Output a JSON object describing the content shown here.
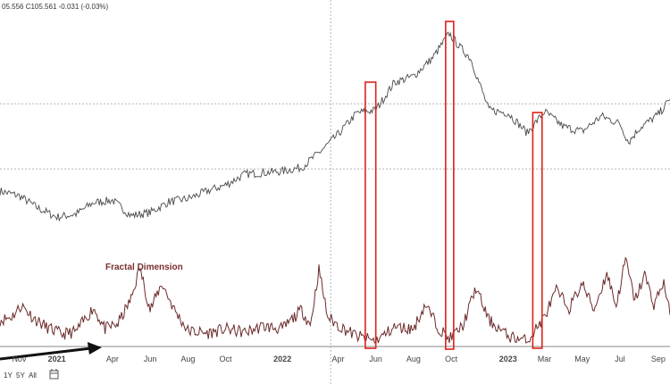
{
  "quote_text": "05.556  C105.561  -0.031 (-0.03%)",
  "indicator_label": "Fractal Dimension",
  "range_buttons": [
    "1Y",
    "5Y",
    "All"
  ],
  "calendar_icon": "calendar-icon",
  "colors": {
    "price_line": "#4a4a4a",
    "fd_line": "#6b2a2a",
    "highlight_box": "#e0201a",
    "arrow": "#111111",
    "grid_dotted": "#b5b5b5",
    "baseline": "#888888"
  },
  "chart_data": [
    {
      "type": "line",
      "title": "",
      "series": [
        {
          "name": "",
          "values_note": ""
        }
      ],
      "x_tick_labels": [
        "Nov",
        "2021",
        "Apr",
        "Jun",
        "Aug",
        "Oct",
        "2022",
        "Apr",
        "Jun",
        "Aug",
        "Oct",
        "2023",
        "Mar",
        "May",
        "Jul",
        "Sep"
      ],
      "x_ticks": [
        "2020-11-01",
        "2021-01-01",
        "2021-04-01",
        "2021-06-01",
        "2021-08-01",
        "2021-10-01",
        "2022-01-01",
        "2022-04-01",
        "2022-06-01",
        "2022-08-01",
        "2022-10-01",
        "2023-01-01",
        "2023-03-01",
        "2023-05-01",
        "2023-07-01",
        "2023-09-01"
      ],
      "x_range": [
        "2020-10-01",
        "2023-09-20"
      ],
      "y_range": [
        88,
        116
      ],
      "points": [
        [
          "2020-10-01",
          93.6
        ],
        [
          "2020-11-01",
          93.0
        ],
        [
          "2020-12-01",
          91.4
        ],
        [
          "2021-01-01",
          90.2
        ],
        [
          "2021-02-01",
          90.6
        ],
        [
          "2021-03-01",
          92.1
        ],
        [
          "2021-04-01",
          92.4
        ],
        [
          "2021-05-01",
          90.4
        ],
        [
          "2021-06-01",
          90.8
        ],
        [
          "2021-07-01",
          92.2
        ],
        [
          "2021-08-01",
          92.6
        ],
        [
          "2021-09-01",
          93.6
        ],
        [
          "2021-10-01",
          94.4
        ],
        [
          "2021-11-01",
          95.8
        ],
        [
          "2021-12-01",
          96.0
        ],
        [
          "2022-01-01",
          96.2
        ],
        [
          "2022-02-01",
          96.7
        ],
        [
          "2022-03-01",
          98.6
        ],
        [
          "2022-04-01",
          101.0
        ],
        [
          "2022-05-01",
          103.8
        ],
        [
          "2022-06-01",
          104.2
        ],
        [
          "2022-07-01",
          107.8
        ],
        [
          "2022-08-01",
          108.6
        ],
        [
          "2022-09-01",
          111.0
        ],
        [
          "2022-09-28",
          114.2
        ],
        [
          "2022-10-15",
          112.4
        ],
        [
          "2022-11-01",
          111.0
        ],
        [
          "2022-12-01",
          104.2
        ],
        [
          "2023-01-01",
          103.8
        ],
        [
          "2023-02-01",
          101.2
        ],
        [
          "2023-03-01",
          104.0
        ],
        [
          "2023-04-01",
          102.0
        ],
        [
          "2023-05-01",
          101.4
        ],
        [
          "2023-06-01",
          103.4
        ],
        [
          "2023-07-01",
          102.4
        ],
        [
          "2023-07-15",
          100.0
        ],
        [
          "2023-08-01",
          101.8
        ],
        [
          "2023-09-01",
          103.6
        ],
        [
          "2023-09-20",
          105.56
        ]
      ],
      "last_value": 105.561,
      "dotted_levels": [
        105.0,
        96.5
      ]
    },
    {
      "type": "line",
      "title": "Fractal Dimension",
      "y_range": [
        0,
        1
      ],
      "points": [
        [
          "2020-10-01",
          0.28
        ],
        [
          "2020-10-20",
          0.32
        ],
        [
          "2020-11-05",
          0.45
        ],
        [
          "2020-11-25",
          0.3
        ],
        [
          "2020-12-15",
          0.2
        ],
        [
          "2021-01-10",
          0.12
        ],
        [
          "2021-02-01",
          0.15
        ],
        [
          "2021-03-01",
          0.42
        ],
        [
          "2021-03-20",
          0.18
        ],
        [
          "2021-04-10",
          0.24
        ],
        [
          "2021-05-01",
          0.52
        ],
        [
          "2021-05-15",
          0.88
        ],
        [
          "2021-06-01",
          0.4
        ],
        [
          "2021-06-20",
          0.7
        ],
        [
          "2021-07-10",
          0.4
        ],
        [
          "2021-08-01",
          0.16
        ],
        [
          "2021-09-01",
          0.13
        ],
        [
          "2021-10-01",
          0.18
        ],
        [
          "2021-11-01",
          0.14
        ],
        [
          "2021-12-01",
          0.21
        ],
        [
          "2022-01-01",
          0.18
        ],
        [
          "2022-02-01",
          0.4
        ],
        [
          "2022-02-15",
          0.22
        ],
        [
          "2022-03-01",
          0.86
        ],
        [
          "2022-03-15",
          0.32
        ],
        [
          "2022-04-01",
          0.22
        ],
        [
          "2022-05-01",
          0.1
        ],
        [
          "2022-06-01",
          0.04
        ],
        [
          "2022-07-01",
          0.2
        ],
        [
          "2022-08-01",
          0.18
        ],
        [
          "2022-08-20",
          0.46
        ],
        [
          "2022-09-10",
          0.2
        ],
        [
          "2022-09-28",
          0.06
        ],
        [
          "2022-10-20",
          0.22
        ],
        [
          "2022-11-10",
          0.65
        ],
        [
          "2022-12-01",
          0.28
        ],
        [
          "2023-01-01",
          0.1
        ],
        [
          "2023-02-01",
          0.04
        ],
        [
          "2023-03-01",
          0.32
        ],
        [
          "2023-03-20",
          0.62
        ],
        [
          "2023-04-10",
          0.42
        ],
        [
          "2023-05-01",
          0.7
        ],
        [
          "2023-05-20",
          0.4
        ],
        [
          "2023-06-10",
          0.82
        ],
        [
          "2023-06-25",
          0.44
        ],
        [
          "2023-07-10",
          0.98
        ],
        [
          "2023-07-25",
          0.5
        ],
        [
          "2023-08-10",
          0.8
        ],
        [
          "2023-08-25",
          0.46
        ],
        [
          "2023-09-10",
          0.72
        ],
        [
          "2023-09-20",
          0.34
        ]
      ],
      "baseline": 0.0
    }
  ],
  "annotations": {
    "highlight_ranges": [
      {
        "start": "2022-05-15",
        "end": "2022-06-01"
      },
      {
        "start": "2022-09-22",
        "end": "2022-10-05"
      },
      {
        "start": "2023-02-10",
        "end": "2023-02-25"
      }
    ],
    "arrow": {
      "from": "2020-10-01",
      "to": "2021-04-01"
    }
  }
}
